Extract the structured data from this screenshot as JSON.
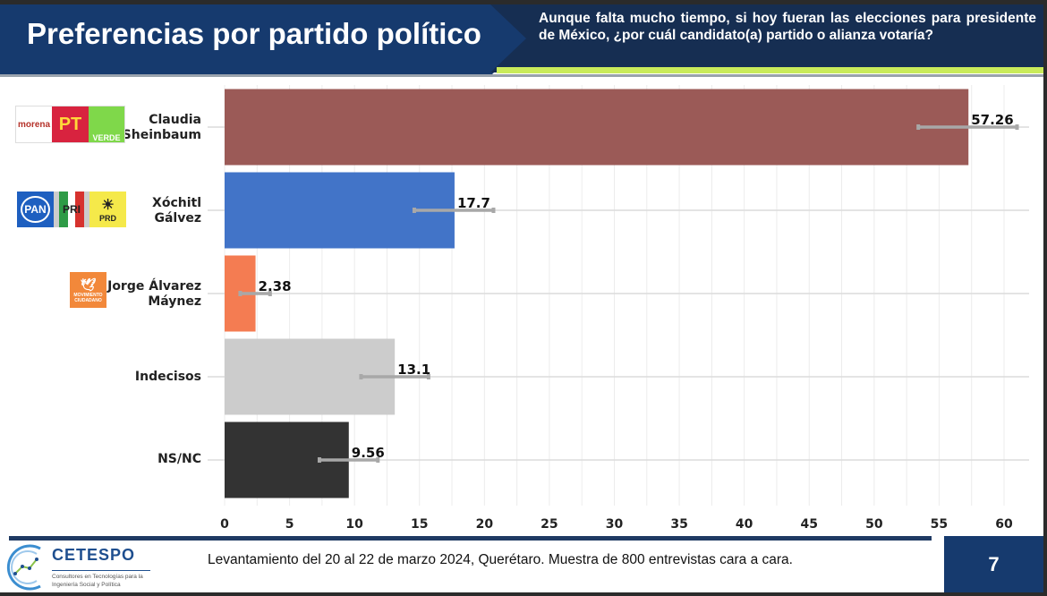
{
  "header": {
    "title": "Preferencias por partido político",
    "question": "Aunque falta mucho tiempo, si hoy fueran las elecciones para presidente de México, ¿por cuál candidato(a) partido o alianza votaría?"
  },
  "candidates": [
    {
      "name_line1": "Claudia",
      "name_line2": "Sheinbaum",
      "parties": [
        "morena",
        "PT",
        "VERDE"
      ]
    },
    {
      "name_line1": "Xóchitl",
      "name_line2": "Gálvez",
      "parties": [
        "PAN",
        "PRI",
        "PRD"
      ]
    },
    {
      "name_line1": "Jorge Álvarez",
      "name_line2": "Máynez",
      "parties": [
        "MOVIMIENTO CIUDADANO"
      ]
    },
    {
      "name_line1": "Indecisos",
      "name_line2": ""
    },
    {
      "name_line1": "NS/NC",
      "name_line2": ""
    }
  ],
  "chart_data": {
    "type": "bar",
    "orientation": "horizontal",
    "categories": [
      "Claudia Sheinbaum",
      "Xóchitl Gálvez",
      "Jorge Álvarez Máynez",
      "Indecisos",
      "NS/NC"
    ],
    "values": [
      57.26,
      17.7,
      2.38,
      13.1,
      9.56
    ],
    "data_labels": [
      "57.26",
      "17.7",
      "2.38",
      "13.1",
      "9.56"
    ],
    "error_low": [
      53.4,
      14.6,
      1.2,
      10.5,
      7.3
    ],
    "error_high": [
      61.0,
      20.7,
      3.5,
      15.7,
      11.8
    ],
    "colors": [
      "#9b5a57",
      "#4274c8",
      "#f47c52",
      "#cccccc",
      "#333333"
    ],
    "xlim": [
      0,
      62
    ],
    "xticks": [
      "0",
      "5",
      "10",
      "15",
      "20",
      "25",
      "30",
      "35",
      "40",
      "45",
      "50",
      "55",
      "60"
    ],
    "grid": true
  },
  "footer": {
    "text": "Levantamiento del 20 al 22 de marzo 2024, Querétaro. Muestra de 800 entrevistas cara a cara.",
    "page_number": "7",
    "logo_name": "CETESPO",
    "logo_subtitle": "Consultores en Tecnologías para la Ingeniería Social y Política"
  }
}
